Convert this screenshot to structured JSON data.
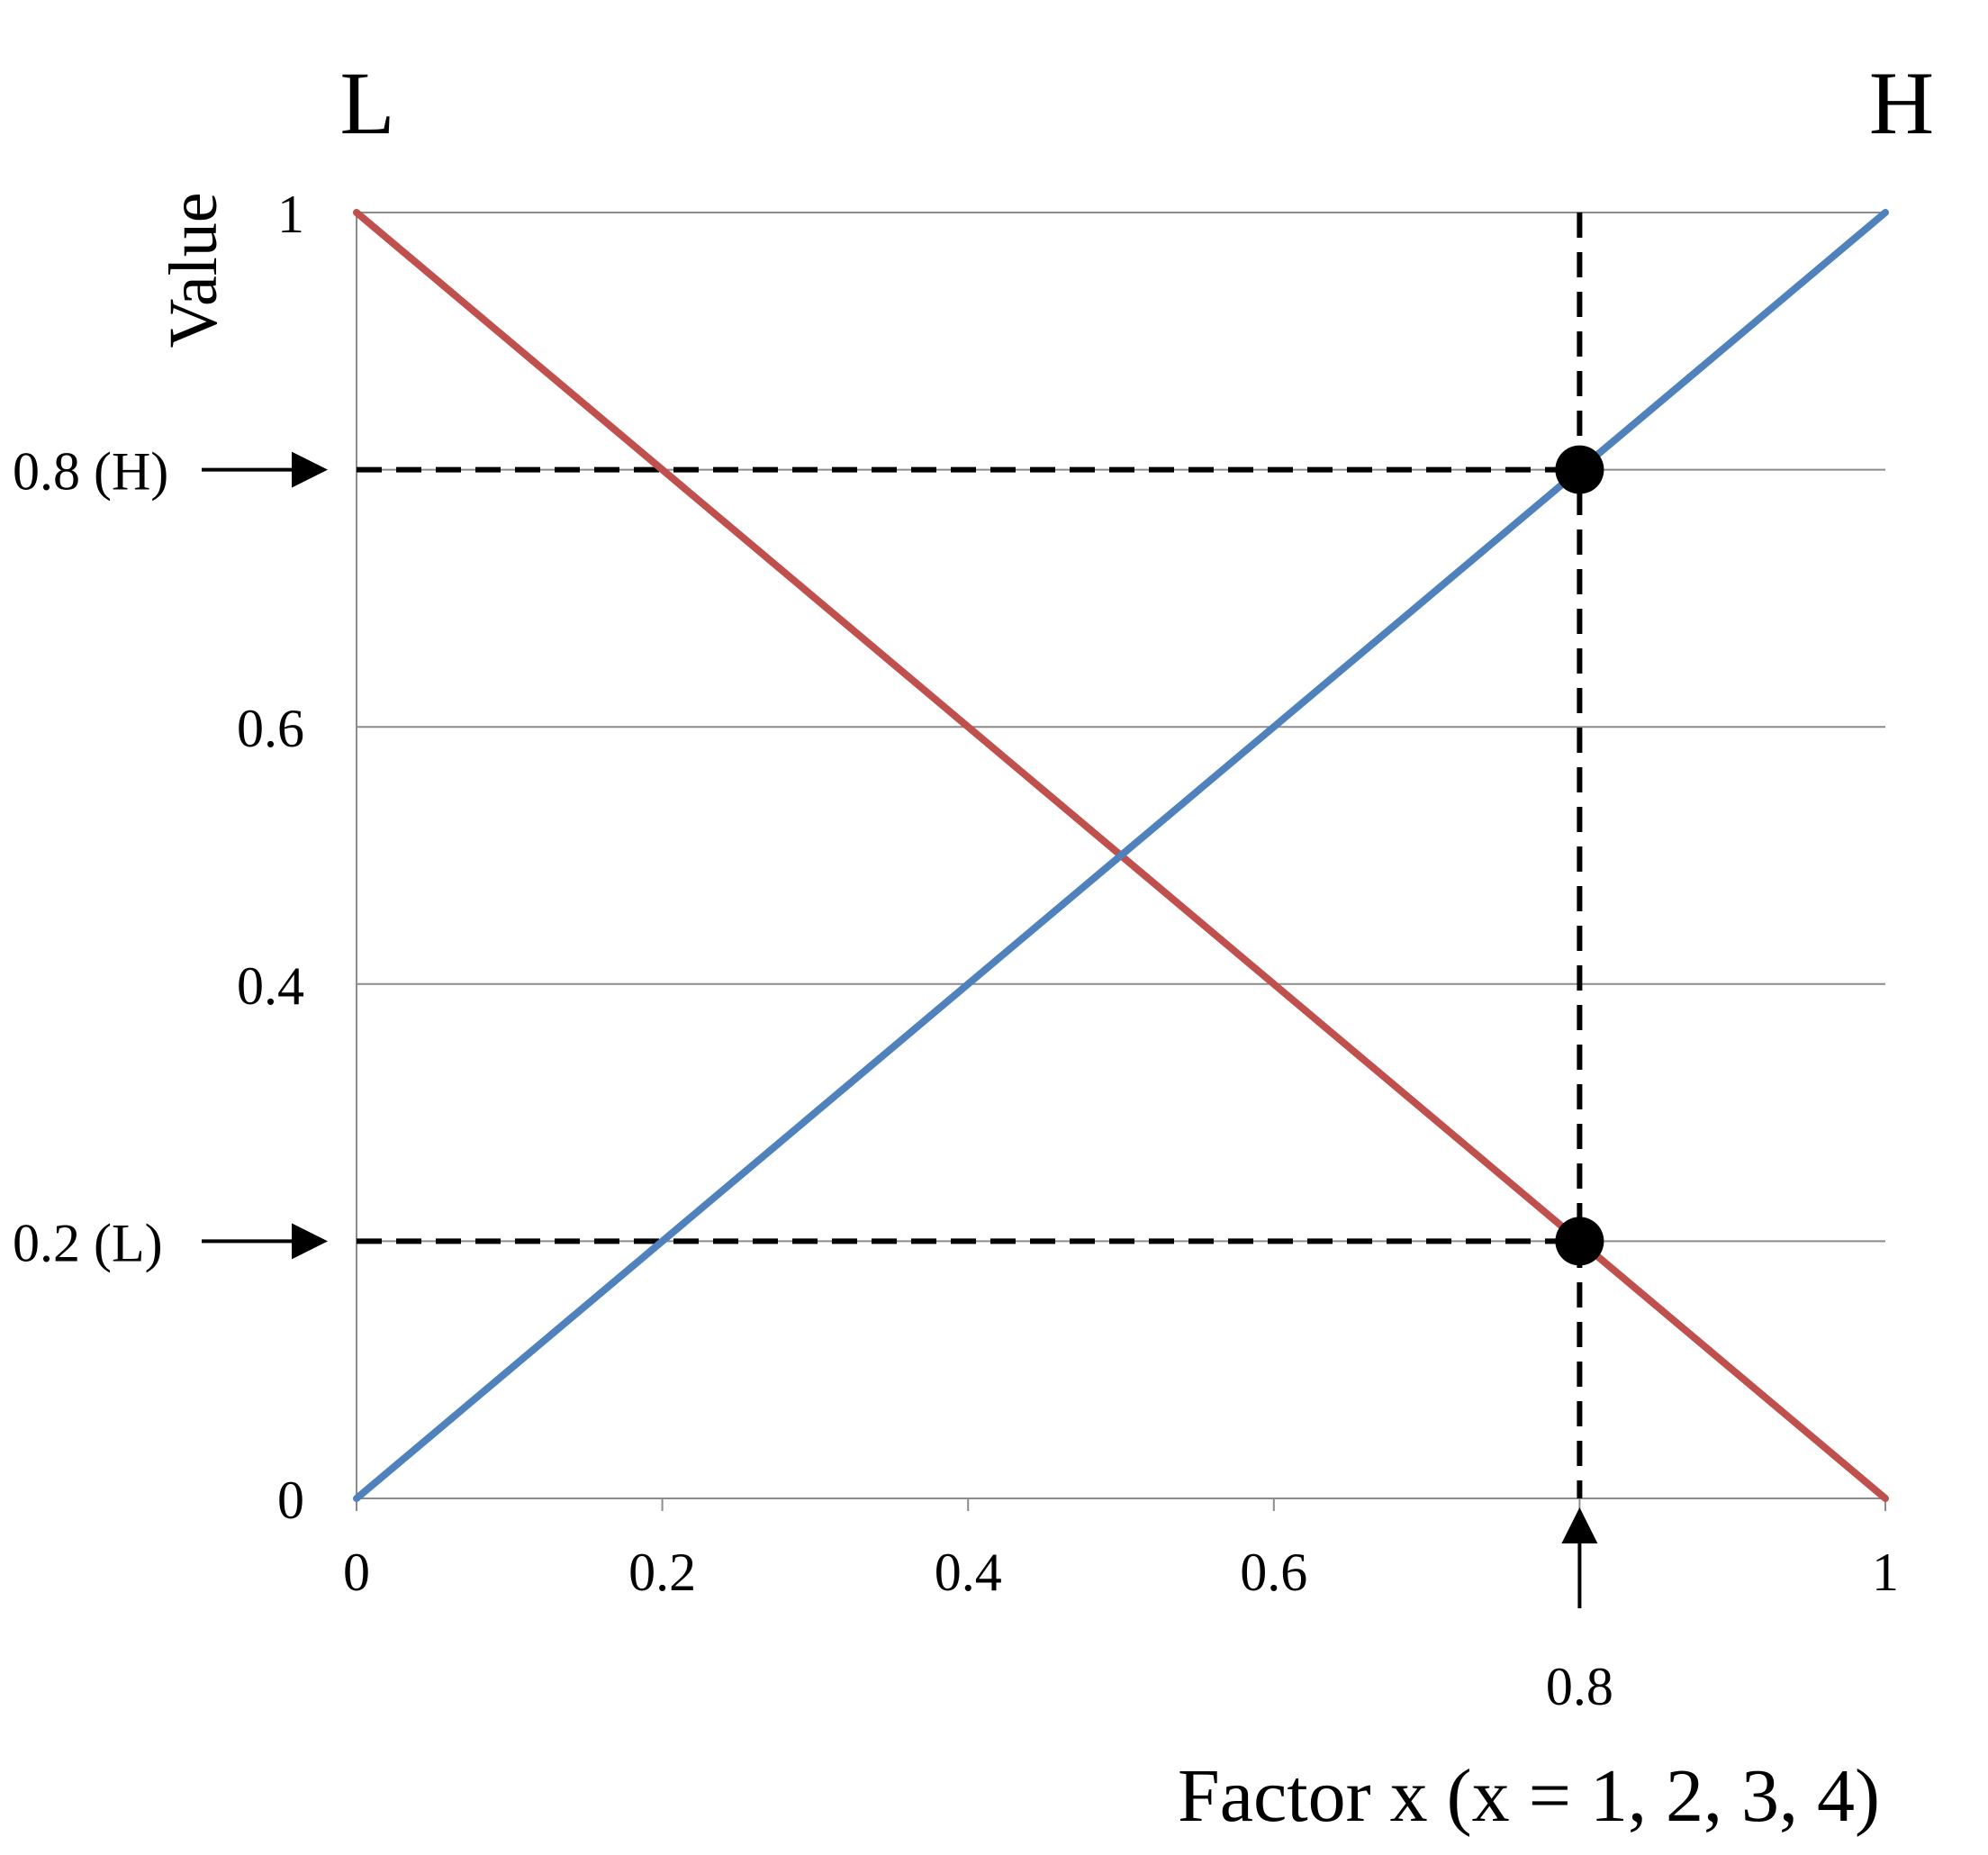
{
  "chart_data": {
    "type": "line",
    "corner_labels": {
      "left": "L",
      "right": "H"
    },
    "ylabel": "Value",
    "xlabel": "Factor x (x = 1, 2, 3, 4)",
    "xlim": [
      0,
      1
    ],
    "ylim": [
      0,
      1
    ],
    "grid": "horizontal",
    "x_ticks": [
      {
        "value": 0,
        "label": "0"
      },
      {
        "value": 0.2,
        "label": "0.2"
      },
      {
        "value": 0.4,
        "label": "0.4"
      },
      {
        "value": 0.6,
        "label": "0.6"
      },
      {
        "value": 1,
        "label": "1"
      }
    ],
    "y_ticks": [
      {
        "value": 0,
        "label": "0"
      },
      {
        "value": 0.4,
        "label": "0.4"
      },
      {
        "value": 0.6,
        "label": "0.6"
      },
      {
        "value": 1,
        "label": "1"
      }
    ],
    "series": [
      {
        "color": "#c0504d",
        "points": [
          [
            0,
            1
          ],
          [
            1,
            0
          ]
        ]
      },
      {
        "color": "#4f81bd",
        "points": [
          [
            0,
            0
          ],
          [
            1,
            1
          ]
        ]
      }
    ],
    "highlight_x": {
      "value": 0.8,
      "label": "0.8"
    },
    "highlight_points": [
      {
        "x": 0.8,
        "y": 0.8,
        "label": "0.8 (H)"
      },
      {
        "x": 0.8,
        "y": 0.2,
        "label": "0.2 (L)"
      }
    ]
  }
}
